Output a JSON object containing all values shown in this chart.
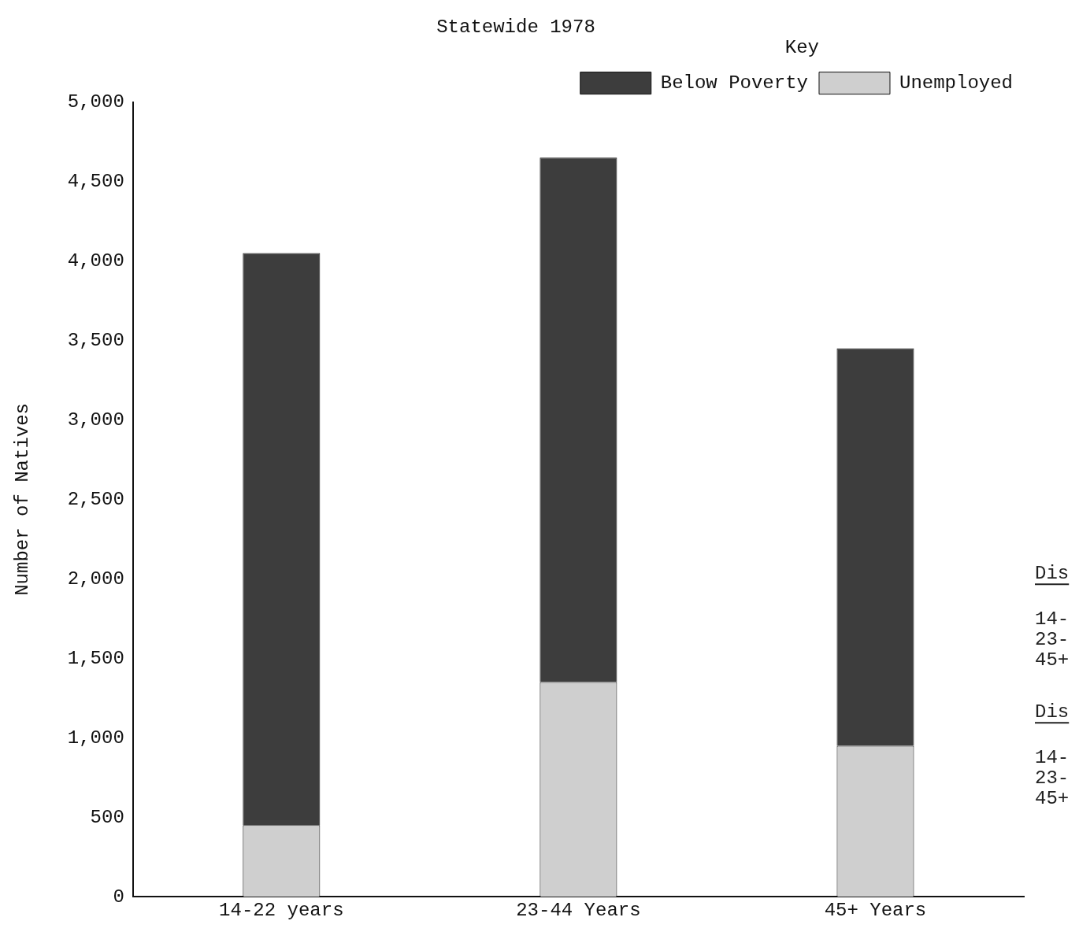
{
  "chart_data": {
    "type": "bar",
    "title": "Statewide 1978",
    "ylabel": "Number of Natives",
    "legend_title": "Key",
    "categories": [
      "14-22 years",
      "23-44 Years",
      "45+ Years"
    ],
    "stacked": true,
    "series": [
      {
        "name": "Unemployed",
        "color": "#cfcfcf",
        "values": [
          450,
          1350,
          950
        ]
      },
      {
        "name": "Below Poverty",
        "color": "#3d3d3d",
        "values": [
          3600,
          3300,
          2500
        ]
      }
    ],
    "ylim": [
      0,
      5000
    ],
    "yticks": [
      {
        "value": 0,
        "label": "0"
      },
      {
        "value": 500,
        "label": "500"
      },
      {
        "value": 1000,
        "label": "1,000"
      },
      {
        "value": 1500,
        "label": "1,500"
      },
      {
        "value": 2000,
        "label": "2,000"
      },
      {
        "value": 2500,
        "label": "2,500"
      },
      {
        "value": 3000,
        "label": "3,000"
      },
      {
        "value": 3500,
        "label": "3,500"
      },
      {
        "value": 4000,
        "label": "4,000"
      },
      {
        "value": 4500,
        "label": "4,500"
      },
      {
        "value": 5000,
        "label": "5,000"
      }
    ],
    "grid": false,
    "legend": "top right",
    "annotations": [
      "Dis",
      "14-",
      "23-",
      "45+",
      "Dis",
      "14-",
      "23-",
      "45+"
    ]
  }
}
